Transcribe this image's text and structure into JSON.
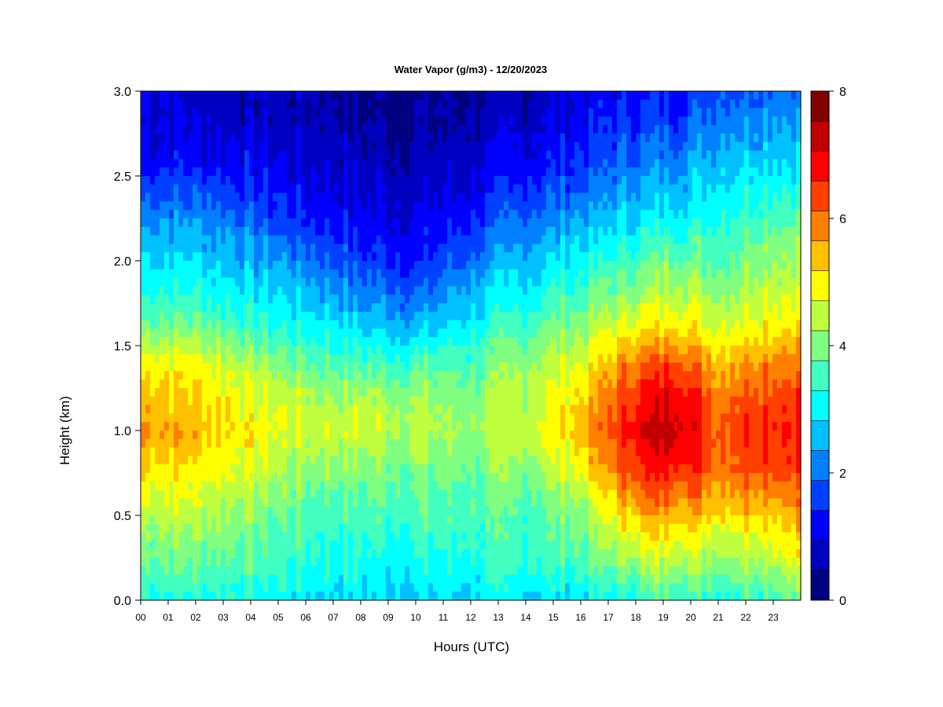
{
  "chart_data": {
    "type": "heatmap",
    "title": "Water Vapor (g/m3) - 12/20/2023",
    "xlabel": "Hours (UTC)",
    "ylabel": "Height (km)",
    "x_ticks": [
      "00",
      "01",
      "02",
      "03",
      "04",
      "05",
      "06",
      "07",
      "08",
      "09",
      "10",
      "11",
      "12",
      "13",
      "14",
      "15",
      "16",
      "17",
      "18",
      "19",
      "20",
      "21",
      "22",
      "23"
    ],
    "y_ticks": [
      "0.0",
      "0.5",
      "1.0",
      "1.5",
      "2.0",
      "2.5",
      "3.0"
    ],
    "xlim": [
      0,
      24
    ],
    "ylim": [
      0,
      3.0
    ],
    "colorbar": {
      "range": [
        0,
        8
      ],
      "ticks": [
        "0",
        "2",
        "4",
        "6",
        "8"
      ],
      "levels": [
        0,
        0.5,
        1,
        1.5,
        2,
        2.5,
        3,
        3.5,
        4,
        4.5,
        5,
        5.5,
        6,
        6.5,
        7,
        7.5,
        8
      ],
      "colors": [
        "#000080",
        "#0000c0",
        "#0000ff",
        "#0040ff",
        "#0080ff",
        "#00c0ff",
        "#00ffff",
        "#40ffc0",
        "#80ff80",
        "#c0ff40",
        "#ffff00",
        "#ffc000",
        "#ff8000",
        "#ff4000",
        "#ff0000",
        "#c00000",
        "#800000"
      ]
    },
    "heights_km": [
      0.0,
      0.2,
      0.4,
      0.6,
      0.8,
      1.0,
      1.2,
      1.4,
      1.6,
      1.8,
      2.0,
      2.2,
      2.4,
      2.6,
      2.8,
      3.0
    ],
    "profiles": [
      {
        "hour": 0,
        "values": [
          3.3,
          3.8,
          4.2,
          4.8,
          5.3,
          5.8,
          5.4,
          5.0,
          4.0,
          3.3,
          2.9,
          2.4,
          1.8,
          1.2,
          1.0,
          1.0
        ]
      },
      {
        "hour": 2,
        "values": [
          3.3,
          3.8,
          4.2,
          4.7,
          5.1,
          5.5,
          5.3,
          4.9,
          4.0,
          3.3,
          2.9,
          2.4,
          1.8,
          1.2,
          0.9,
          0.8
        ]
      },
      {
        "hour": 4,
        "values": [
          3.1,
          3.6,
          3.9,
          4.3,
          4.7,
          5.0,
          4.8,
          4.3,
          3.5,
          3.0,
          2.5,
          2.0,
          1.5,
          1.1,
          0.8,
          0.7
        ]
      },
      {
        "hour": 6,
        "values": [
          2.9,
          3.3,
          3.5,
          3.8,
          4.2,
          4.6,
          4.4,
          3.8,
          3.2,
          2.6,
          2.1,
          1.5,
          1.1,
          0.9,
          0.7,
          0.6
        ]
      },
      {
        "hour": 8,
        "values": [
          2.8,
          3.2,
          3.4,
          3.7,
          4.1,
          4.6,
          4.3,
          3.6,
          2.8,
          2.2,
          1.6,
          1.2,
          0.9,
          0.7,
          0.5,
          0.4
        ]
      },
      {
        "hour": 10,
        "values": [
          2.7,
          3.1,
          3.4,
          3.7,
          4.0,
          4.5,
          4.2,
          3.5,
          2.6,
          1.9,
          1.3,
          1.0,
          0.8,
          0.6,
          0.4,
          0.3
        ]
      },
      {
        "hour": 12,
        "values": [
          2.9,
          3.2,
          3.5,
          3.7,
          3.9,
          4.2,
          4.0,
          3.6,
          3.1,
          2.6,
          2.0,
          1.5,
          1.0,
          0.8,
          0.6,
          0.5
        ]
      },
      {
        "hour": 14,
        "values": [
          2.9,
          3.4,
          3.5,
          3.8,
          4.2,
          4.6,
          4.5,
          4.2,
          3.6,
          3.1,
          2.6,
          2.1,
          1.6,
          1.1,
          0.8,
          0.6
        ]
      },
      {
        "hour": 16,
        "values": [
          2.9,
          3.5,
          3.9,
          4.3,
          5.0,
          5.4,
          5.2,
          4.7,
          4.2,
          3.6,
          3.1,
          2.5,
          1.9,
          1.5,
          1.2,
          1.0
        ]
      },
      {
        "hour": 18,
        "values": [
          3.3,
          4.2,
          5.0,
          5.9,
          6.6,
          7.0,
          6.7,
          6.0,
          5.0,
          4.2,
          3.6,
          3.0,
          2.5,
          2.0,
          1.6,
          1.2
        ]
      },
      {
        "hour": 19.5,
        "values": [
          3.6,
          4.5,
          5.2,
          6.1,
          7.0,
          7.4,
          7.1,
          6.4,
          5.2,
          4.6,
          4.0,
          3.3,
          2.7,
          2.2,
          1.7,
          1.4
        ]
      },
      {
        "hour": 21,
        "values": [
          3.3,
          4.1,
          4.8,
          5.6,
          6.1,
          6.3,
          6.0,
          5.5,
          4.7,
          4.2,
          3.7,
          3.3,
          3.0,
          2.6,
          2.2,
          1.8
        ]
      },
      {
        "hour": 22.5,
        "values": [
          3.5,
          4.3,
          5.0,
          5.8,
          6.5,
          6.6,
          6.4,
          5.9,
          5.1,
          4.6,
          4.2,
          3.8,
          3.3,
          2.8,
          2.4,
          2.0
        ]
      },
      {
        "hour": 24,
        "values": [
          3.8,
          4.8,
          5.4,
          6.0,
          6.6,
          6.8,
          6.5,
          6.0,
          5.2,
          4.7,
          4.3,
          3.9,
          3.4,
          2.9,
          2.5,
          2.1
        ]
      }
    ]
  }
}
